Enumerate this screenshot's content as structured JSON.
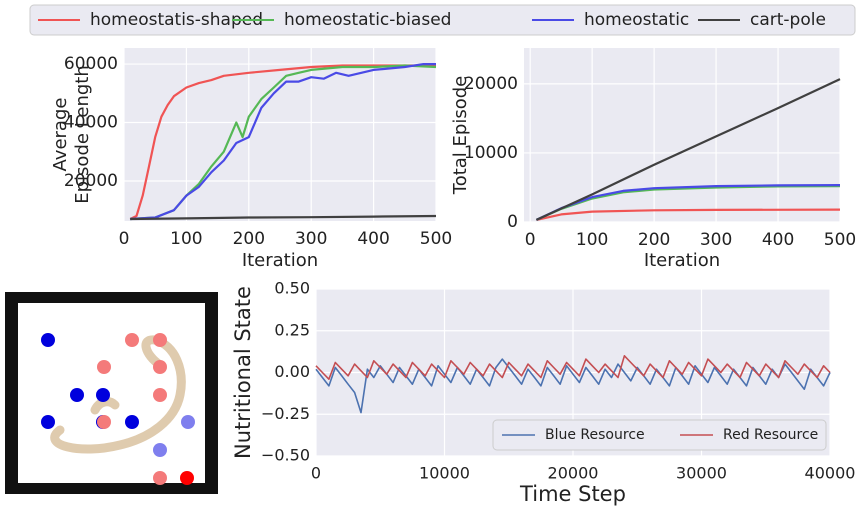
{
  "chart_data": [
    {
      "type": "line",
      "ylabel": [
        "Average",
        "Episode Length"
      ],
      "xlabel": "Iteration",
      "xlim": [
        0,
        500
      ],
      "xticks": [
        0,
        100,
        200,
        300,
        400,
        500
      ],
      "ylim": [
        6300,
        65500
      ],
      "yticks": [
        20000,
        40000,
        60000
      ],
      "grid": true,
      "legend": "top",
      "series": [
        {
          "name": "homeostatis-shaped",
          "color": "#f05454",
          "x": [
            10,
            20,
            30,
            40,
            50,
            60,
            70,
            80,
            100,
            120,
            140,
            160,
            200,
            250,
            300,
            350,
            400,
            450,
            500
          ],
          "values": [
            7000,
            8000,
            15000,
            25000,
            35000,
            42000,
            46000,
            49000,
            52000,
            53500,
            54500,
            56000,
            57000,
            58000,
            59000,
            59500,
            59500,
            59500,
            59500
          ]
        },
        {
          "name": "homeostatic-biased",
          "color": "#55b855",
          "x": [
            10,
            50,
            80,
            100,
            120,
            140,
            160,
            180,
            190,
            200,
            220,
            240,
            260,
            280,
            300,
            350,
            400,
            450,
            500
          ],
          "values": [
            7000,
            7500,
            10000,
            15000,
            19000,
            25000,
            30000,
            40000,
            35000,
            42000,
            48000,
            52000,
            56000,
            57000,
            58000,
            59000,
            59000,
            59500,
            59000
          ]
        },
        {
          "name": "homeostatic",
          "color": "#4a4ae6",
          "x": [
            10,
            50,
            80,
            100,
            120,
            140,
            160,
            180,
            200,
            220,
            240,
            260,
            280,
            300,
            320,
            340,
            360,
            400,
            450,
            480,
            500
          ],
          "values": [
            7000,
            7500,
            10000,
            15000,
            18000,
            23000,
            27000,
            33000,
            35000,
            45000,
            50000,
            54000,
            54000,
            55500,
            55000,
            57000,
            56000,
            58000,
            59000,
            60000,
            60000
          ]
        },
        {
          "name": "cart-pole",
          "color": "#404040",
          "x": [
            10,
            100,
            200,
            300,
            400,
            500
          ],
          "values": [
            7000,
            7200,
            7500,
            7600,
            7800,
            8000
          ]
        }
      ]
    },
    {
      "type": "line",
      "ylabel": "Total Episode",
      "xlabel": "Iteration",
      "xlim": [
        -10,
        500
      ],
      "xticks": [
        0,
        100,
        200,
        300,
        400,
        500
      ],
      "ylim": [
        0,
        25200
      ],
      "yticks": [
        0,
        10000,
        20000
      ],
      "grid": true,
      "series": [
        {
          "color": "#f05454",
          "x": [
            10,
            50,
            100,
            200,
            300,
            500
          ],
          "values": [
            300,
            1100,
            1500,
            1700,
            1750,
            1800
          ]
        },
        {
          "color": "#55b855",
          "x": [
            10,
            50,
            100,
            150,
            200,
            300,
            400,
            500
          ],
          "values": [
            300,
            1900,
            3400,
            4300,
            4700,
            5000,
            5150,
            5200
          ]
        },
        {
          "color": "#4a4ae6",
          "x": [
            10,
            50,
            100,
            150,
            200,
            300,
            400,
            500
          ],
          "values": [
            300,
            2000,
            3600,
            4500,
            4900,
            5200,
            5300,
            5350
          ]
        },
        {
          "color": "#404040",
          "x": [
            10,
            100,
            200,
            300,
            400,
            500
          ],
          "values": [
            300,
            4000,
            8300,
            12400,
            16500,
            20700
          ]
        }
      ]
    },
    {
      "type": "line",
      "ylabel": "Nutritional State",
      "xlabel": "Time Step",
      "xlim": [
        0,
        40000
      ],
      "xticks": [
        0,
        10000,
        20000,
        30000,
        40000
      ],
      "ylim": [
        -0.5,
        0.5
      ],
      "yticks": [
        {
          "value": -0.5,
          "label": "−0.50"
        },
        {
          "value": -0.25,
          "label": "−0.25"
        },
        {
          "value": 0,
          "label": "0.00"
        },
        {
          "value": 0.25,
          "label": "0.25"
        },
        {
          "value": 0.5,
          "label": "0.50"
        }
      ],
      "grid": true,
      "legend": "lower right",
      "x": [
        0,
        500,
        1000,
        1500,
        2000,
        2500,
        3000,
        3500,
        4000,
        4500,
        5000,
        5500,
        6000,
        6500,
        7000,
        7500,
        8000,
        8500,
        9000,
        9500,
        10000,
        10500,
        11000,
        11500,
        12000,
        12500,
        13000,
        13500,
        14000,
        14500,
        15000,
        15500,
        16000,
        16500,
        17000,
        17500,
        18000,
        18500,
        19000,
        19500,
        20000,
        20500,
        21000,
        21500,
        22000,
        22500,
        23000,
        23500,
        24000,
        24500,
        25000,
        25500,
        26000,
        26500,
        27000,
        27500,
        28000,
        28500,
        29000,
        29500,
        30000,
        30500,
        31000,
        31500,
        32000,
        32500,
        33000,
        33500,
        34000,
        34500,
        35000,
        35500,
        36000,
        36500,
        37000,
        37500,
        38000,
        38500,
        39000,
        39500,
        40000
      ],
      "series": [
        {
          "name": "Blue Resource",
          "color": "#4c72b0",
          "values": [
            0.02,
            -0.03,
            -0.08,
            0.03,
            -0.02,
            -0.07,
            -0.12,
            -0.24,
            0.02,
            -0.03,
            0.04,
            -0.01,
            -0.06,
            0.03,
            -0.02,
            -0.07,
            0.02,
            -0.03,
            -0.08,
            0.04,
            -0.01,
            -0.06,
            0.03,
            -0.02,
            -0.07,
            0.02,
            -0.03,
            -0.08,
            0.03,
            0.08,
            0.03,
            -0.02,
            -0.07,
            0.02,
            -0.03,
            -0.08,
            0.03,
            -0.02,
            -0.07,
            0.04,
            -0.01,
            -0.06,
            0.03,
            -0.02,
            -0.07,
            0.02,
            -0.03,
            0.05,
            0.0,
            -0.05,
            0.03,
            -0.02,
            -0.07,
            0.02,
            -0.03,
            -0.08,
            0.03,
            -0.02,
            -0.07,
            0.04,
            -0.01,
            -0.06,
            0.03,
            -0.02,
            -0.07,
            0.02,
            -0.03,
            -0.08,
            0.03,
            -0.02,
            -0.07,
            0.02,
            -0.03,
            0.05,
            0.0,
            -0.05,
            -0.1,
            0.02,
            -0.03,
            -0.08,
            0.0
          ]
        },
        {
          "name": "Red Resource",
          "color": "#c44e52",
          "values": [
            0.04,
            0.0,
            -0.04,
            0.06,
            0.02,
            -0.02,
            0.05,
            0.01,
            -0.03,
            0.07,
            0.03,
            -0.01,
            0.05,
            0.01,
            -0.03,
            0.06,
            0.02,
            -0.02,
            0.05,
            0.01,
            -0.03,
            0.07,
            0.03,
            -0.01,
            0.06,
            0.02,
            -0.02,
            0.05,
            0.01,
            -0.03,
            0.06,
            0.02,
            -0.02,
            0.05,
            0.01,
            -0.03,
            0.07,
            0.03,
            -0.01,
            0.06,
            0.02,
            -0.02,
            0.08,
            0.04,
            0.0,
            0.05,
            0.01,
            -0.03,
            0.1,
            0.06,
            0.02,
            -0.02,
            0.05,
            0.01,
            -0.03,
            0.07,
            0.03,
            -0.01,
            0.06,
            0.02,
            -0.02,
            0.08,
            0.04,
            0.0,
            0.05,
            0.01,
            -0.03,
            0.06,
            0.02,
            -0.02,
            0.05,
            0.01,
            -0.03,
            0.07,
            0.03,
            -0.01,
            0.05,
            0.01,
            -0.03,
            0.04,
            0.0
          ]
        }
      ]
    }
  ]
}
